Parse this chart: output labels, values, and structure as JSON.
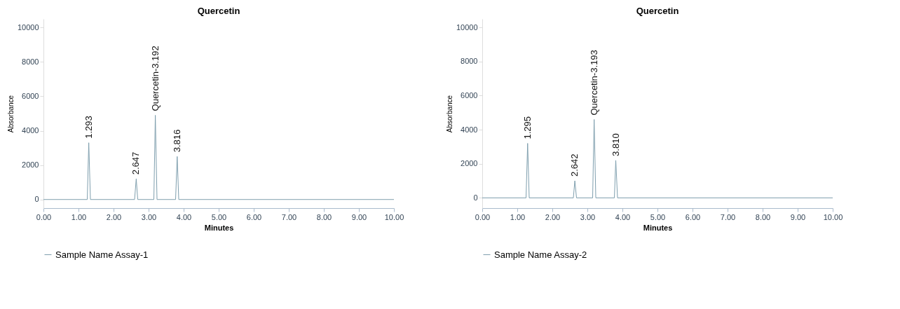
{
  "chart_data": [
    {
      "type": "line",
      "title": "Quercetin",
      "xlabel": "Minutes",
      "ylabel": "Absorbance",
      "legend": "bottom left",
      "grid": false,
      "marker": "none",
      "line_style": "solid",
      "series": [
        {
          "name": "Sample Name Assay-1",
          "color": "#7f9fae",
          "x": [
            0.0,
            1.25,
            1.293,
            1.34,
            2.6,
            2.647,
            2.69,
            3.15,
            3.192,
            3.24,
            3.77,
            3.816,
            3.86,
            10.0
          ],
          "values": [
            0,
            0,
            3300,
            0,
            0,
            1200,
            0,
            0,
            4900,
            0,
            0,
            2500,
            0,
            0
          ]
        }
      ],
      "xlim": [
        0,
        10
      ],
      "ylim": [
        -500,
        10500
      ],
      "xticks": [
        {
          "value": 0,
          "label": "0.00"
        },
        {
          "value": 1,
          "label": "1.00"
        },
        {
          "value": 2,
          "label": "2.00"
        },
        {
          "value": 3,
          "label": "3.00"
        },
        {
          "value": 4,
          "label": "4.00"
        },
        {
          "value": 5,
          "label": "5.00"
        },
        {
          "value": 6,
          "label": "6.00"
        },
        {
          "value": 7,
          "label": "7.00"
        },
        {
          "value": 8,
          "label": "8.00"
        },
        {
          "value": 9,
          "label": "9.00"
        },
        {
          "value": 10,
          "label": "10.00"
        }
      ],
      "yticks": [
        0,
        2000,
        4000,
        6000,
        8000,
        10000
      ],
      "annotations": [
        {
          "text": "1.293",
          "x": 1.293,
          "y": 3300
        },
        {
          "text": "2.647",
          "x": 2.647,
          "y": 1200
        },
        {
          "text": "Quercetin-3.192",
          "x": 3.192,
          "y": 4900
        },
        {
          "text": "3.816",
          "x": 3.816,
          "y": 2500
        }
      ]
    },
    {
      "type": "line",
      "title": "Quercetin",
      "xlabel": "Minutes",
      "ylabel": "Absorbance",
      "legend": "bottom left",
      "grid": false,
      "marker": "none",
      "line_style": "solid",
      "series": [
        {
          "name": "Sample Name Assay-2",
          "color": "#7f9fae",
          "x": [
            0.0,
            1.25,
            1.295,
            1.34,
            2.6,
            2.642,
            2.69,
            3.15,
            3.193,
            3.24,
            3.77,
            3.81,
            3.86,
            10.0
          ],
          "values": [
            0,
            0,
            3200,
            0,
            0,
            1000,
            0,
            0,
            4600,
            0,
            0,
            2200,
            0,
            0
          ]
        }
      ],
      "xlim": [
        0,
        10
      ],
      "ylim": [
        -600,
        10500
      ],
      "xticks": [
        {
          "value": 0,
          "label": "0.00"
        },
        {
          "value": 1,
          "label": "1.00"
        },
        {
          "value": 2,
          "label": "2.00"
        },
        {
          "value": 3,
          "label": "3.00"
        },
        {
          "value": 4,
          "label": "4.00"
        },
        {
          "value": 5,
          "label": "5.00"
        },
        {
          "value": 6,
          "label": "6.00"
        },
        {
          "value": 7,
          "label": "7.00"
        },
        {
          "value": 8,
          "label": "8.00"
        },
        {
          "value": 9,
          "label": "9.00"
        },
        {
          "value": 10,
          "label": "10.00"
        }
      ],
      "yticks": [
        0,
        2000,
        4000,
        6000,
        8000,
        10000
      ],
      "annotations": [
        {
          "text": "1.295",
          "x": 1.295,
          "y": 3200
        },
        {
          "text": "2.642",
          "x": 2.642,
          "y": 1000
        },
        {
          "text": "Quercetin-3.193",
          "x": 3.193,
          "y": 4600
        },
        {
          "text": "3.810",
          "x": 3.81,
          "y": 2200
        }
      ]
    }
  ]
}
